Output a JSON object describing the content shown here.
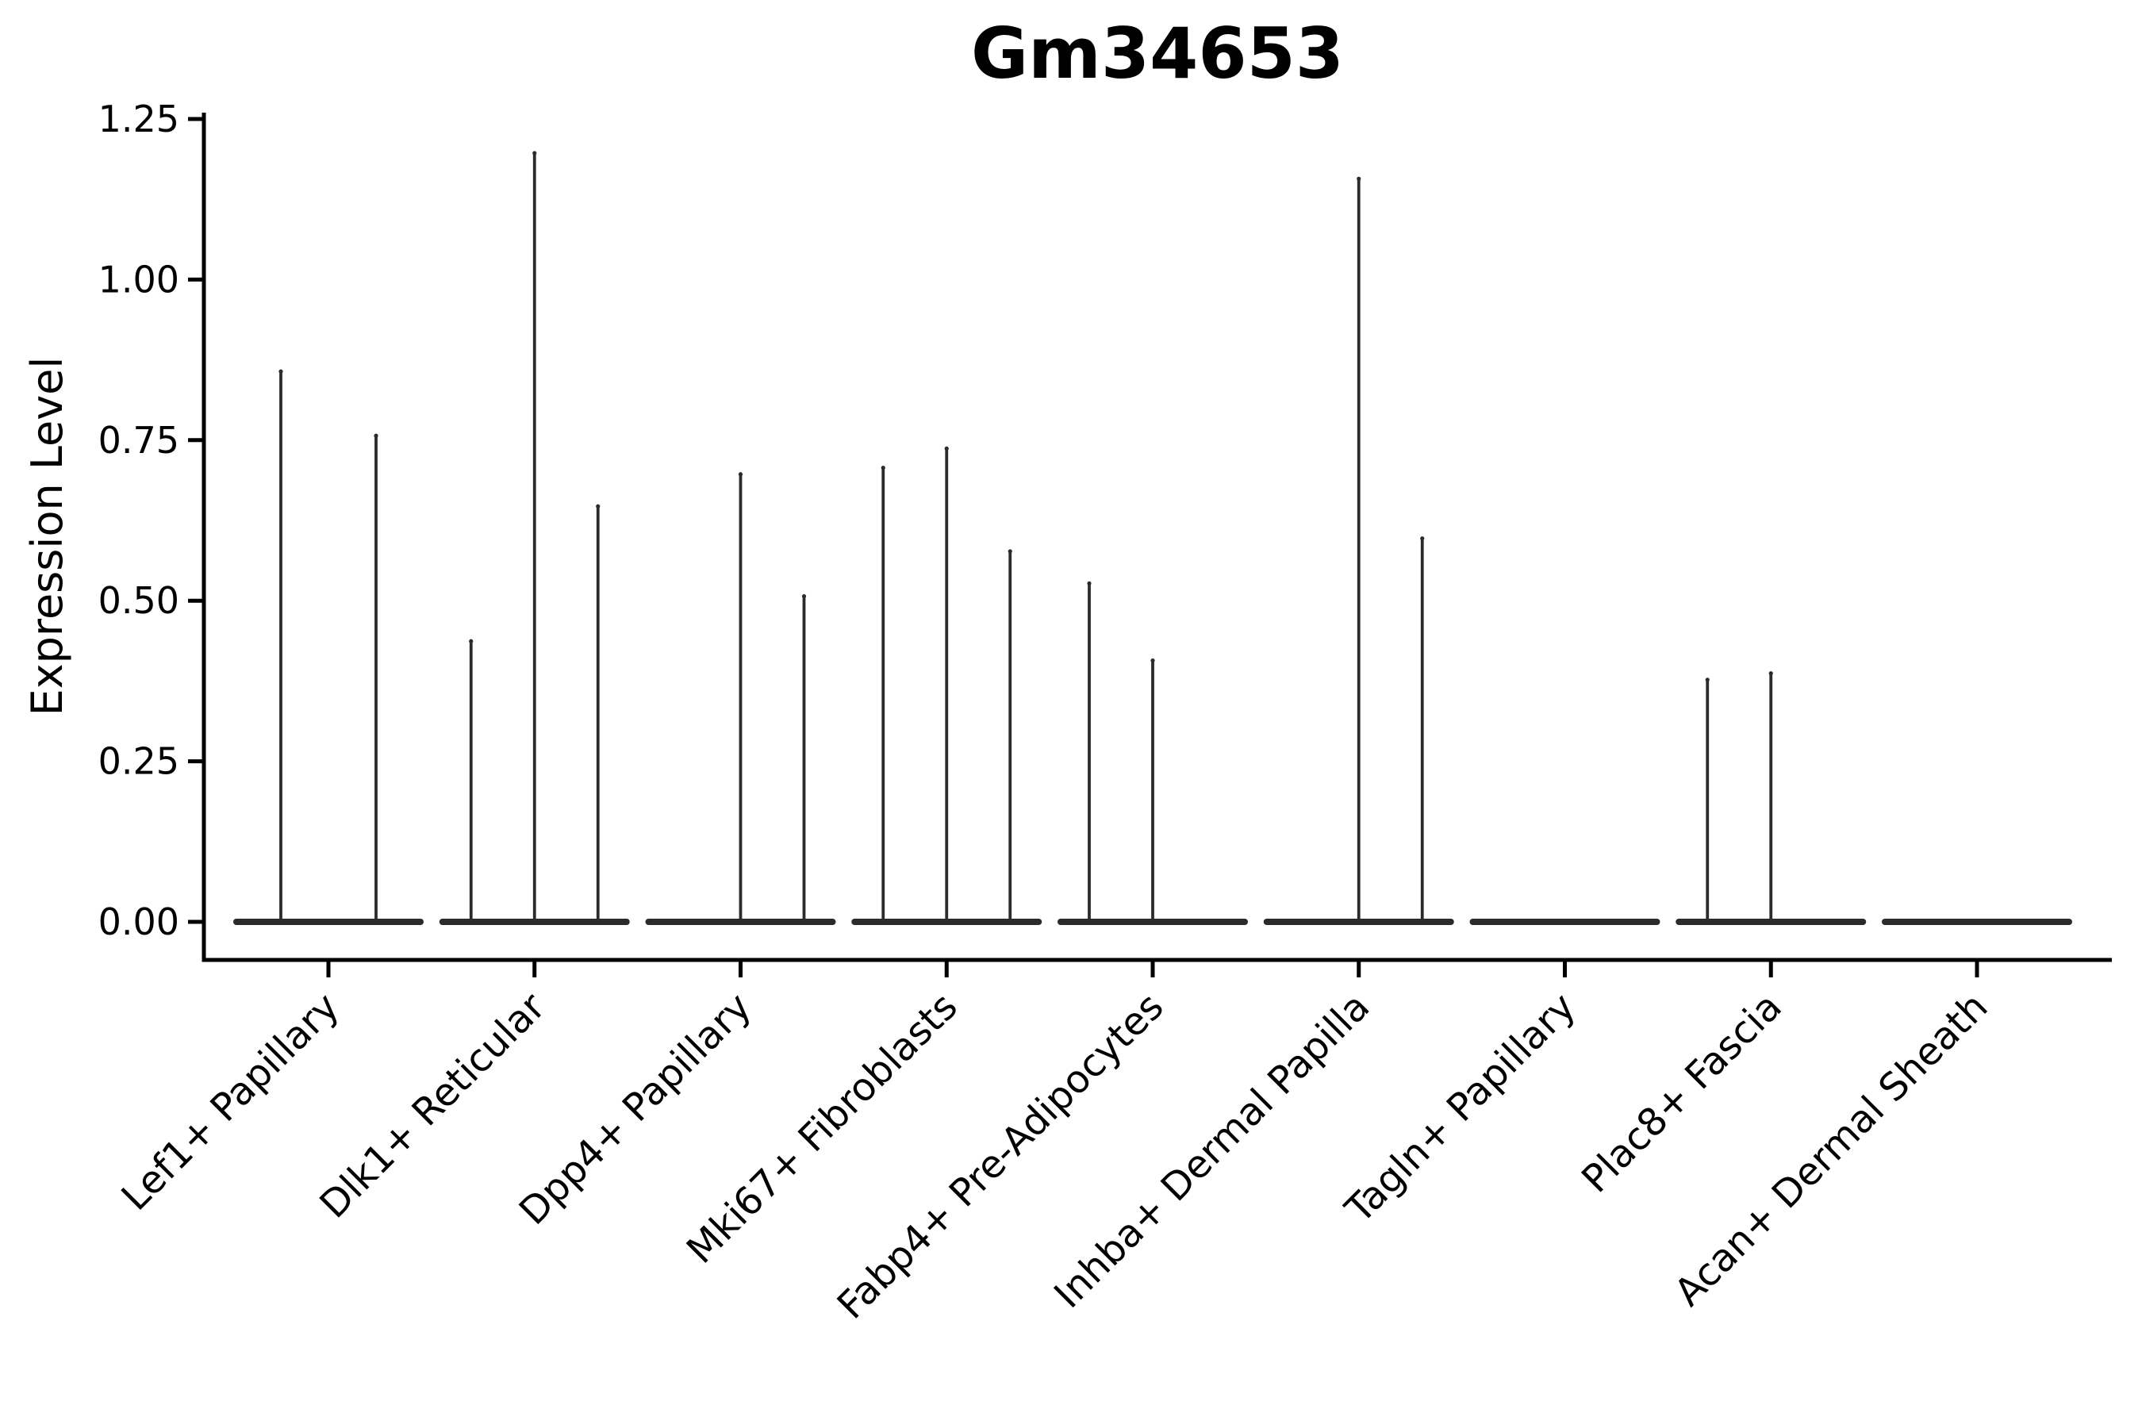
{
  "title": "Gm34653",
  "ylabel": "Expression Level",
  "colors": {
    "background": "#ffffff",
    "violin": "#2b2b2b",
    "axis": "#000000",
    "text": "#000000"
  },
  "chart_data": {
    "type": "violin",
    "title": "Gm34653",
    "xlabel": "",
    "ylabel": "Expression Level",
    "ylim": [
      0,
      1.25
    ],
    "yticks": [
      0,
      0.25,
      0.5,
      0.75,
      1,
      1.25
    ],
    "ytick_labels": [
      "0.00",
      "0.25",
      "0.50",
      "0.75",
      "1.00",
      "1.25"
    ],
    "grid": false,
    "legend": "none",
    "categories": [
      "Lef1+ Papillary",
      "Dlk1+ Reticular",
      "Dpp4+ Papillary",
      "Mki67+ Fibroblasts",
      "Fabp4+ Pre-Adipocytes",
      "Inhba+ Dermal Papilla",
      "Tagln+ Papillary",
      "Plac8+ Fascia",
      "Acan+ Dermal Sheath"
    ],
    "series": [
      {
        "label": "Lef1+ Papillary",
        "violins": [
          {
            "offset": -60,
            "max": 0.86
          },
          {
            "offset": 60,
            "max": 0.76
          }
        ]
      },
      {
        "label": "Dlk1+ Reticular",
        "violins": [
          {
            "offset": -80,
            "max": 0.44
          },
          {
            "offset": 0,
            "max": 1.2
          },
          {
            "offset": 80,
            "max": 0.65
          }
        ]
      },
      {
        "label": "Dpp4+ Papillary",
        "violins": [
          {
            "offset": 0,
            "max": 0.7
          },
          {
            "offset": 80,
            "max": 0.51
          }
        ]
      },
      {
        "label": "Mki67+ Fibroblasts",
        "violins": [
          {
            "offset": -80,
            "max": 0.71
          },
          {
            "offset": 0,
            "max": 0.74
          },
          {
            "offset": 80,
            "max": 0.58
          }
        ]
      },
      {
        "label": "Fabp4+ Pre-Adipocytes",
        "violins": [
          {
            "offset": -80,
            "max": 0.53
          },
          {
            "offset": 0,
            "max": 0.41
          }
        ]
      },
      {
        "label": "Inhba+ Dermal Papilla",
        "violins": [
          {
            "offset": 0,
            "max": 1.16
          },
          {
            "offset": 80,
            "max": 0.6
          }
        ]
      },
      {
        "label": "Tagln+ Papillary",
        "violins": []
      },
      {
        "label": "Plac8+ Fascia",
        "violins": [
          {
            "offset": -80,
            "max": 0.38
          },
          {
            "offset": 0,
            "max": 0.39
          }
        ]
      },
      {
        "label": "Acan+ Dermal Sheath",
        "violins": []
      }
    ]
  }
}
